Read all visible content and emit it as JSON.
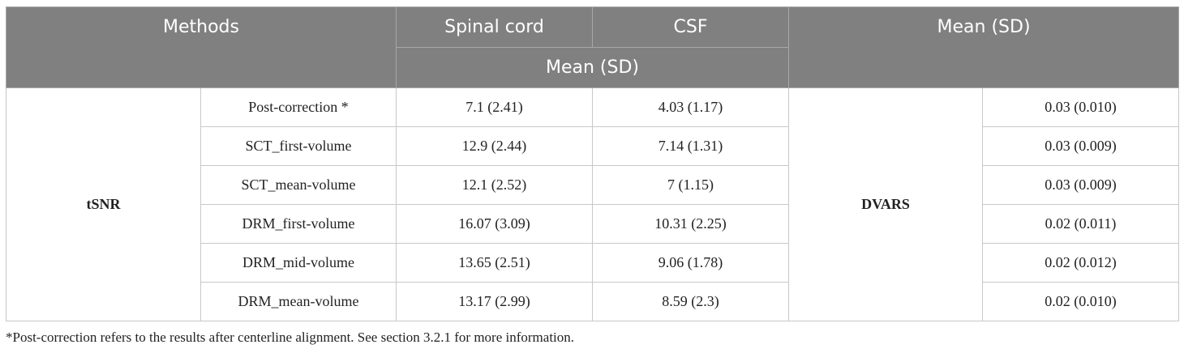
{
  "table": {
    "header": {
      "methods": "Methods",
      "spinal_cord": "Spinal cord",
      "csf": "CSF",
      "mean_sd_right": "Mean (SD)",
      "mean_sd_sub": "Mean (SD)"
    },
    "left_group": "tSNR",
    "right_group": "DVARS",
    "rows": [
      {
        "method": "Post-correction *",
        "spinal_cord": "7.1 (2.41)",
        "csf": "4.03 (1.17)",
        "dvars": "0.03 (0.010)"
      },
      {
        "method": "SCT_first-volume",
        "spinal_cord": "12.9 (2.44)",
        "csf": "7.14 (1.31)",
        "dvars": "0.03 (0.009)"
      },
      {
        "method": "SCT_mean-volume",
        "spinal_cord": "12.1 (2.52)",
        "csf": "7 (1.15)",
        "dvars": "0.03 (0.009)"
      },
      {
        "method": "DRM_first-volume",
        "spinal_cord": "16.07 (3.09)",
        "csf": "10.31 (2.25)",
        "dvars": "0.02 (0.011)"
      },
      {
        "method": "DRM_mid-volume",
        "spinal_cord": "13.65 (2.51)",
        "csf": "9.06 (1.78)",
        "dvars": "0.02 (0.012)"
      },
      {
        "method": "DRM_mean-volume",
        "spinal_cord": "13.17 (2.99)",
        "csf": "8.59 (2.3)",
        "dvars": "0.02 (0.010)"
      }
    ]
  },
  "footnote": "*Post-correction refers to the results after centerline alignment. See section 3.2.1 for more information.",
  "colors": {
    "header_bg": "#808080",
    "header_text": "#ffffff",
    "body_text": "#222222",
    "border": "#c8c8c8"
  }
}
